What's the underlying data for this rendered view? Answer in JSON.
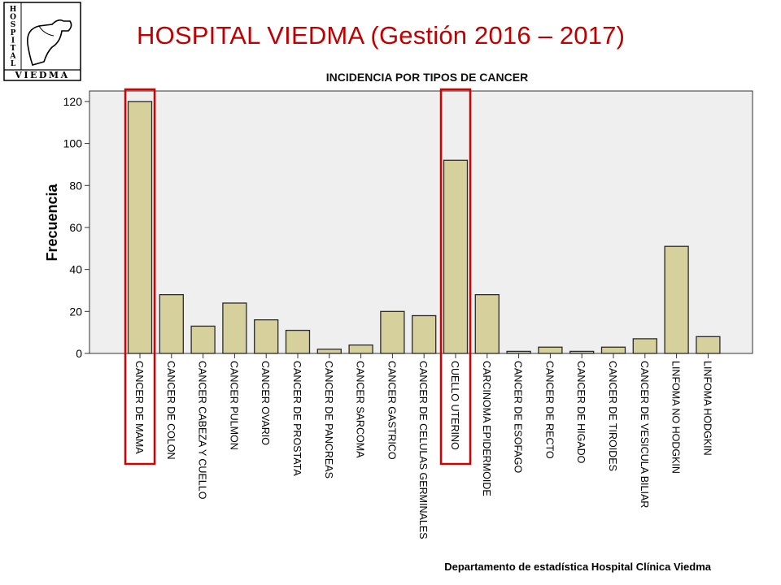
{
  "slide": {
    "title": "HOSPITAL VIEDMA (Gestión 2016 – 2017)",
    "footer": "Departamento de estadística Hospital Clínica Viedma"
  },
  "logo": {
    "vertical_text": [
      "H",
      "O",
      "S",
      "P",
      "I",
      "T",
      "A",
      "L"
    ],
    "bottom_text": "VIEDMA"
  },
  "colors": {
    "title": "#c00000",
    "bar_fill": "#d6d09c",
    "bar_stroke": "#2b2b2b",
    "plot_bg": "#efefef",
    "highlight": "#d40000"
  },
  "chart_data": {
    "type": "bar",
    "title": "INCIDENCIA POR TIPOS DE CANCER",
    "xlabel": "",
    "ylabel": "Frecuencia",
    "ylim": [
      0,
      125
    ],
    "yticks": [
      0,
      20,
      40,
      60,
      80,
      100,
      120
    ],
    "grid": false,
    "categories": [
      "CANCER DE MAMA",
      "CANCER DE COLON",
      "CANCER CABEZA Y CUELLO",
      "CANCER PULMON",
      "CANCER OVARIO",
      "CANCER DE PROSTATA",
      "CANCER DE PANCREAS",
      "CANCER SARCOMA",
      "CANCER GASTRICO",
      "CANCER DE CELULAS GERMINALES",
      "CUELLO UTERINO",
      "CARCINOMA EPIDERMOIDE",
      "CANCER DE ESOFAGO",
      "CANCER DE RECTO",
      "CANCER DE HIGADO",
      "CANCER DE TIROIDES",
      "CANCER DE VESICULA BILIAR",
      "LINFOMA NO HODGKIN",
      "LINFOMA HODGKIN"
    ],
    "values": [
      120,
      28,
      13,
      24,
      16,
      11,
      2,
      4,
      20,
      18,
      92,
      28,
      1,
      3,
      1,
      3,
      7,
      51,
      8
    ],
    "highlighted_categories": [
      "CANCER DE MAMA",
      "CUELLO UTERINO"
    ]
  }
}
